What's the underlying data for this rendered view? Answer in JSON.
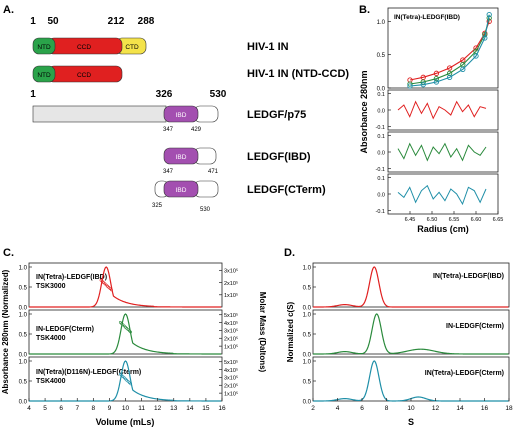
{
  "panel_letters": {
    "a": "A.",
    "b": "B.",
    "c": "C.",
    "d": "D."
  },
  "colors": {
    "red": "#e02020",
    "green": "#2a8a3c",
    "teal": "#1f8fa8",
    "purple": "#a34fb0",
    "yellow": "#f4e34a",
    "ntd_green": "#2aa34a",
    "gray": "#e6e6e6"
  },
  "panel_a": {
    "rows": [
      {
        "label": "HIV-1 IN",
        "numbers": [
          "1",
          "50",
          "212",
          "288"
        ],
        "domains": [
          {
            "name": "NTD",
            "color": "#2aa34a"
          },
          {
            "name": "CCD",
            "color": "#e02020"
          },
          {
            "name": "CTD",
            "color": "#f4e34a"
          }
        ]
      },
      {
        "label": "HIV-1 IN (NTD-CCD)",
        "numbers": [],
        "domains": [
          {
            "name": "NTD",
            "color": "#2aa34a"
          },
          {
            "name": "CCD",
            "color": "#e02020"
          }
        ]
      },
      {
        "label": "LEDGF/p75",
        "numbers": [
          "1",
          "326",
          "530"
        ],
        "sub_numbers": [
          "347",
          "429"
        ],
        "domains": [
          {
            "name": "",
            "color": "#e6e6e6"
          },
          {
            "name": "IBD",
            "color": "#a34fb0"
          },
          {
            "name": "",
            "color": "#ffffff"
          }
        ]
      },
      {
        "label": "LEDGF(IBD)",
        "numbers": [],
        "sub_numbers": [
          "347",
          "471"
        ],
        "domains": [
          {
            "name": "IBD",
            "color": "#a34fb0"
          },
          {
            "name": "",
            "color": "#ffffff"
          }
        ]
      },
      {
        "label": "LEDGF(CTerm)",
        "numbers": [],
        "sub_numbers": [
          "325",
          "530"
        ],
        "domains": [
          {
            "name": "",
            "color": "#ffffff"
          },
          {
            "name": "IBD",
            "color": "#a34fb0"
          },
          {
            "name": "",
            "color": "#ffffff"
          }
        ]
      }
    ]
  },
  "chart_data": [
    {
      "panel": "B",
      "type": "scatter",
      "title": "IN(Tetra)-LEDGF(IBD)",
      "xlabel": "Radius (cm)",
      "ylabel": "Absorbance 280nm",
      "xlim": [
        6.4,
        6.65
      ],
      "x_ticks": [
        "6.45",
        "6.50",
        "6.55",
        "6.60",
        "6.65"
      ],
      "main_ylim": [
        0.0,
        1.2
      ],
      "main_y_ticks": [
        "0.0",
        "0.5",
        "1.0"
      ],
      "residual_ylim": [
        -0.1,
        0.1
      ],
      "residual_y_ticks": [
        "-0.1",
        "0.0",
        "0.1"
      ],
      "series": [
        {
          "color": "#e02020",
          "x": [
            6.45,
            6.48,
            6.51,
            6.54,
            6.57,
            6.6,
            6.62,
            6.63
          ],
          "y": [
            0.12,
            0.16,
            0.22,
            0.3,
            0.42,
            0.6,
            0.82,
            1.0
          ]
        },
        {
          "color": "#2a8a3c",
          "x": [
            6.45,
            6.48,
            6.51,
            6.54,
            6.57,
            6.6,
            6.62,
            6.63
          ],
          "y": [
            0.06,
            0.09,
            0.14,
            0.22,
            0.35,
            0.55,
            0.8,
            1.05
          ]
        },
        {
          "color": "#1f8fa8",
          "x": [
            6.45,
            6.48,
            6.51,
            6.54,
            6.57,
            6.6,
            6.62,
            6.63
          ],
          "y": [
            0.03,
            0.05,
            0.09,
            0.16,
            0.28,
            0.48,
            0.75,
            1.1
          ]
        }
      ],
      "residuals": [
        {
          "color": "#e02020",
          "values": [
            0.0,
            0.03,
            -0.04,
            0.05,
            -0.02,
            0.04,
            -0.05,
            0.02,
            0.0,
            -0.03,
            0.05,
            -0.01,
            0.03,
            -0.04,
            0.02,
            0.01
          ]
        },
        {
          "color": "#2a8a3c",
          "values": [
            0.02,
            -0.04,
            0.05,
            -0.02,
            0.04,
            -0.05,
            0.03,
            -0.01,
            0.05,
            -0.03,
            0.02,
            -0.05,
            0.04,
            0.0,
            -0.02,
            0.03
          ]
        },
        {
          "color": "#1f8fa8",
          "values": [
            0.01,
            -0.02,
            0.04,
            -0.05,
            0.02,
            0.05,
            -0.03,
            0.01,
            -0.04,
            0.03,
            0.0,
            -0.06,
            0.04,
            0.02,
            -0.05,
            0.03
          ]
        }
      ]
    },
    {
      "panel": "C",
      "type": "line",
      "xlabel": "Volume (mLs)",
      "ylabel_left": "Absorbance 280nm (Normalized)",
      "ylabel_right": "Molar Mass (Daltons)",
      "xlim": [
        4,
        16
      ],
      "x_ticks": [
        "4",
        "5",
        "6",
        "7",
        "8",
        "9",
        "10",
        "11",
        "12",
        "13",
        "14",
        "15",
        "16"
      ],
      "ylim": [
        0,
        1.1
      ],
      "left_y_ticks": [
        "0.0",
        "0.5",
        "1.0"
      ],
      "subplots": [
        {
          "labels": [
            "IN(Tetra)-LEDGF(IBD)",
            "TSK3000"
          ],
          "color": "#e02020",
          "peak": 8.8,
          "right_ticks": [
            "1x10⁵",
            "2x10⁵",
            "3x10⁵"
          ]
        },
        {
          "labels": [
            "IN-LEDGF(Cterm)",
            "TSK4000"
          ],
          "color": "#2a8a3c",
          "peak": 10.0,
          "right_ticks": [
            "1x10⁵",
            "2x10⁵",
            "3x10⁵",
            "4x10⁵",
            "5x10⁵"
          ]
        },
        {
          "labels": [
            "IN(Tetra)(D116N)-LEDGF(Cterm)",
            "TSK4000"
          ],
          "color": "#1f8fa8",
          "peak": 10.0,
          "right_ticks": [
            "1x10⁵",
            "2x10⁵",
            "3x10⁵",
            "4x10⁵",
            "5x10⁵"
          ]
        }
      ]
    },
    {
      "panel": "D",
      "type": "line",
      "xlabel": "S",
      "ylabel": "Normalized c(S)",
      "xlim": [
        2,
        18
      ],
      "x_ticks": [
        "2",
        "4",
        "6",
        "8",
        "10",
        "12",
        "14",
        "16",
        "18"
      ],
      "ylim": [
        0,
        1.1
      ],
      "y_ticks": [
        "0.0",
        "0.5",
        "1.0"
      ],
      "subplots": [
        {
          "label": "IN(Tetra)-LEDGF(IBD)",
          "color": "#e02020",
          "peak": 7.0
        },
        {
          "label": "IN-LEDGF(Cterm)",
          "color": "#2a8a3c",
          "peak": 7.2
        },
        {
          "label": "IN(Tetra)-LEDGF(Cterm)",
          "color": "#1f8fa8",
          "peak": 7.0
        }
      ]
    }
  ]
}
